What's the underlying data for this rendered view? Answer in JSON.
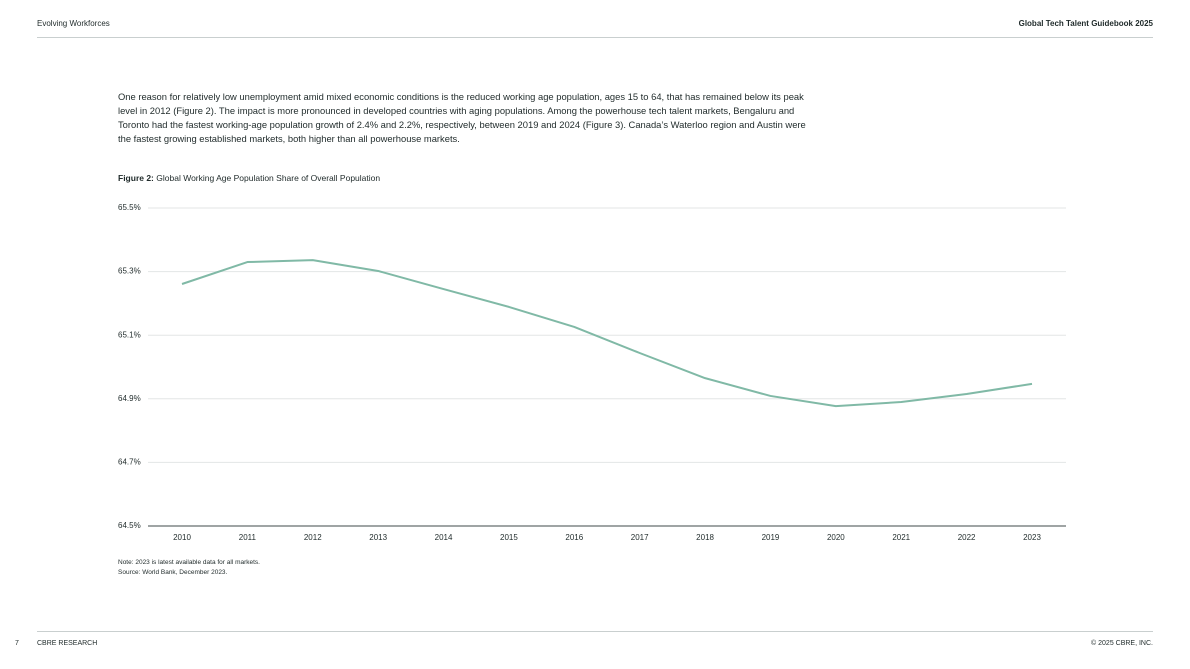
{
  "header": {
    "section": "Evolving Workforces",
    "publication": "Global Tech Talent Guidebook 2025"
  },
  "paragraph": "One reason for relatively low unemployment amid mixed economic conditions is the reduced working age population, ages 15 to 64, that has remained below its peak level in 2012 (Figure 2). The impact is more pronounced in developed countries with aging populations. Among the powerhouse tech talent markets, Bengaluru and Toronto had the fastest working-age population growth of 2.4% and 2.2%, respectively, between 2019 and 2024 (Figure 3). Canada’s Waterloo region and Austin were the fastest growing established markets, both higher than all powerhouse markets.",
  "chart_data": {
    "type": "line",
    "figure_label": "Figure 2:",
    "title": "Global Working Age Population Share of Overall Population",
    "categories": [
      "2010",
      "2011",
      "2012",
      "2013",
      "2014",
      "2015",
      "2016",
      "2017",
      "2018",
      "2019",
      "2020",
      "2021",
      "2022",
      "2023"
    ],
    "series": [
      {
        "color": "#80b9a6",
        "values": [
          65.261,
          65.33,
          65.336,
          65.302,
          65.245,
          65.189,
          65.126,
          65.044,
          64.965,
          64.909,
          64.877,
          64.89,
          64.915,
          64.947
        ]
      }
    ],
    "ylim": [
      64.5,
      65.5
    ],
    "yticks": [
      {
        "value": 64.5,
        "label": "64.5%"
      },
      {
        "value": 64.7,
        "label": "64.7%"
      },
      {
        "value": 64.9,
        "label": "64.9%"
      },
      {
        "value": 65.1,
        "label": "65.1%"
      },
      {
        "value": 65.3,
        "label": "65.3%"
      },
      {
        "value": 65.5,
        "label": "65.5%"
      }
    ],
    "grid": true
  },
  "notes": {
    "note": "Note: 2023 is latest available data for all markets.",
    "source": "Source: World Bank, December 2023."
  },
  "footer": {
    "page": "7",
    "brand": "CBRE RESEARCH",
    "copyright": "© 2025 CBRE, INC."
  }
}
